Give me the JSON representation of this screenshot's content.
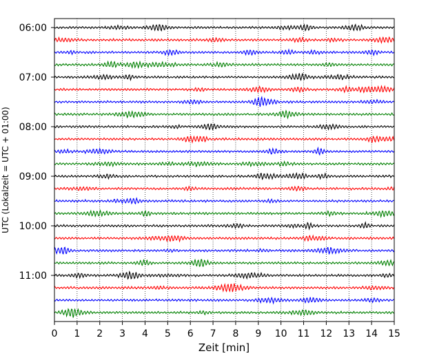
{
  "chart_data": {
    "type": "line",
    "title": "",
    "xlabel": "Zeit  [min]",
    "ylabel": "UTC (Lokalzeit = UTC + 01:00)",
    "xlim": [
      0,
      15
    ],
    "x_ticks": [
      "0",
      "1",
      "2",
      "3",
      "4",
      "5",
      "6",
      "7",
      "8",
      "9",
      "10",
      "11",
      "12",
      "13",
      "14",
      "15"
    ],
    "y_ticks": [
      "06:00",
      "07:00",
      "08:00",
      "09:00",
      "10:00",
      "11:00"
    ],
    "trace_start": "06:00",
    "trace_end": "11:45",
    "trace_interval_min": 15,
    "trace_count": 24,
    "trace_colors": [
      "#000000",
      "#ff0000",
      "#0000ff",
      "#008000"
    ],
    "grid": "vertical dotted at each minute",
    "legend": "none"
  }
}
